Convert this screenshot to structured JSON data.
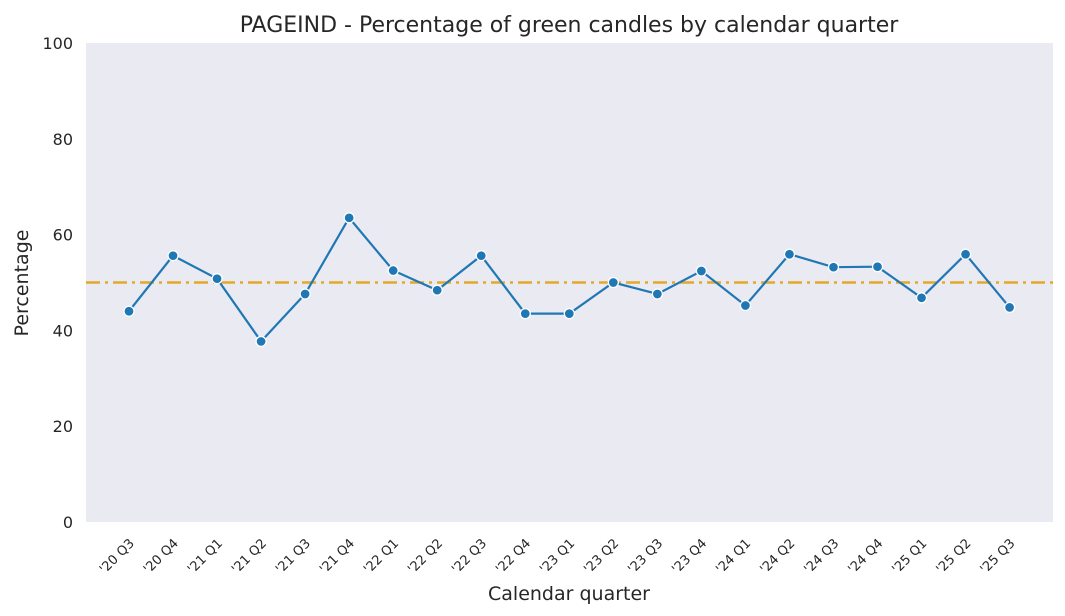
{
  "chart_data": {
    "type": "line",
    "title": "PAGEIND - Percentage of green candles by calendar quarter",
    "xlabel": "Calendar quarter",
    "ylabel": "Percentage",
    "ylim": [
      0,
      100
    ],
    "yticks": [
      0,
      20,
      40,
      60,
      80,
      100
    ],
    "categories": [
      "'20 Q3",
      "'20 Q4",
      "'21 Q1",
      "'21 Q2",
      "'21 Q3",
      "'21 Q4",
      "'22 Q1",
      "'22 Q2",
      "'22 Q3",
      "'22 Q4",
      "'23 Q1",
      "'23 Q2",
      "'23 Q3",
      "'23 Q4",
      "'24 Q1",
      "'24 Q2",
      "'24 Q3",
      "'24 Q4",
      "'25 Q1",
      "'25 Q2",
      "'25 Q3"
    ],
    "series": [
      {
        "values": [
          44.0,
          55.6,
          50.8,
          37.7,
          47.6,
          63.5,
          52.5,
          48.4,
          55.6,
          43.5,
          43.5,
          50.0,
          47.6,
          52.4,
          45.2,
          55.9,
          53.2,
          53.3,
          46.8,
          55.9,
          44.8
        ],
        "color": "#1f77b4"
      }
    ],
    "reference_line": {
      "y": 50,
      "style": "dash-dot",
      "color": "#e5a82b"
    },
    "grid": false,
    "background": "#eaeaf2"
  }
}
